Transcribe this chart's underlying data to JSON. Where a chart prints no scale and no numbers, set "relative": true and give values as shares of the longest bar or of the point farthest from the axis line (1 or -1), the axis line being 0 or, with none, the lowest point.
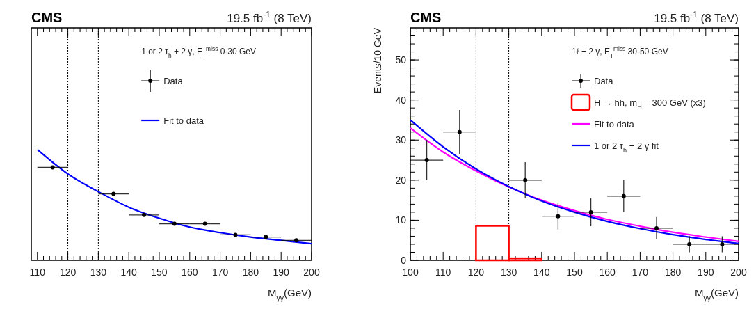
{
  "chart_data": [
    {
      "type": "line",
      "title": "CMS",
      "subtitle": "19.5 fb$^{-1}$ (8 TeV)",
      "xlabel": "M$_{γγ}$(GeV)",
      "legend_title": "1 or 2 τ$_{h}$ + 2 γ, E$_{T}$$^{miss}$ 0-30 GeV",
      "relative": true,
      "legend": "top right",
      "xlim": [
        108,
        200
      ],
      "xticks": [
        110,
        120,
        130,
        140,
        150,
        160,
        170,
        180,
        190,
        200
      ],
      "ref_lines": [
        {
          "axis": "x",
          "value": 120,
          "line_style": "dotted"
        },
        {
          "axis": "x",
          "value": 130,
          "line_style": "dotted"
        }
      ],
      "series": [
        {
          "name": "Data",
          "type": "scatter",
          "marker": "circle",
          "color": "#000000",
          "x": [
            115,
            135,
            145,
            155,
            165,
            175,
            185,
            195
          ],
          "values": [
            0.84,
            0.6,
            0.41,
            0.33,
            0.33,
            0.23,
            0.21,
            0.18
          ],
          "xerrors": [
            5,
            5,
            5,
            5,
            5,
            5,
            5,
            5
          ]
        },
        {
          "name": "Fit to data",
          "color": "#0000ff",
          "x": [
            110,
            120,
            130,
            140,
            150,
            160,
            170,
            180,
            190,
            200
          ],
          "values": [
            1,
            0.78,
            0.62,
            0.48,
            0.38,
            0.3,
            0.25,
            0.21,
            0.18,
            0.15
          ]
        }
      ]
    },
    {
      "type": "line",
      "title": "CMS",
      "subtitle": "19.5 fb$^{-1}$ (8 TeV)",
      "xlabel": "M$_{γγ}$(GeV)",
      "ylabel": "Events/10 GeV",
      "legend_title": "1ℓ + 2 γ, E$_{T}$$^{miss}$ 30-50 GeV",
      "legend": "top right",
      "xlim": [
        100,
        200
      ],
      "xticks": [
        100,
        110,
        120,
        130,
        140,
        150,
        160,
        170,
        180,
        190,
        200
      ],
      "ylim": [
        0,
        58
      ],
      "yticks": [
        0,
        10,
        20,
        30,
        40,
        50
      ],
      "ref_lines": [
        {
          "axis": "x",
          "value": 120,
          "line_style": "dotted"
        },
        {
          "axis": "x",
          "value": 130,
          "line_style": "dotted"
        }
      ],
      "series": [
        {
          "name": "Data",
          "type": "scatter",
          "marker": "circle",
          "color": "#000000",
          "x": [
            105,
            115,
            135,
            145,
            155,
            165,
            175,
            185,
            195
          ],
          "values": [
            25,
            32,
            20,
            11,
            12,
            16,
            8,
            4,
            4
          ],
          "errors": [
            5,
            5.5,
            4.5,
            3.3,
            3.5,
            4,
            2.8,
            2,
            2
          ],
          "xerrors": [
            5,
            5,
            5,
            5,
            5,
            5,
            5,
            5,
            5
          ]
        },
        {
          "name": "H → hh, m$_{H}$ = 300 GeV (x3)",
          "type": "histogram",
          "color": "#ff0000",
          "bins": [
            100,
            110,
            120,
            130,
            140,
            150,
            160,
            170,
            180,
            190,
            200
          ],
          "values": [
            0,
            0,
            8.6,
            0.5,
            0,
            0,
            0,
            0,
            0,
            0
          ]
        },
        {
          "name": "Fit to data",
          "color": "#ff00ff",
          "x": [
            100,
            110,
            120,
            130,
            140,
            150,
            160,
            170,
            180,
            190,
            200
          ],
          "values": [
            33,
            27,
            22.3,
            18.3,
            15,
            12.4,
            10.2,
            8.5,
            7,
            5.8,
            4.7
          ]
        },
        {
          "name": "1 or 2 τ$_{h}$ + 2 γ fit",
          "color": "#0000ff",
          "x": [
            100,
            110,
            120,
            130,
            140,
            150,
            160,
            170,
            180,
            190,
            200
          ],
          "values": [
            35,
            28.3,
            22.8,
            18.4,
            14.8,
            12,
            9.7,
            7.9,
            6.4,
            5.2,
            4.2
          ]
        }
      ]
    }
  ]
}
